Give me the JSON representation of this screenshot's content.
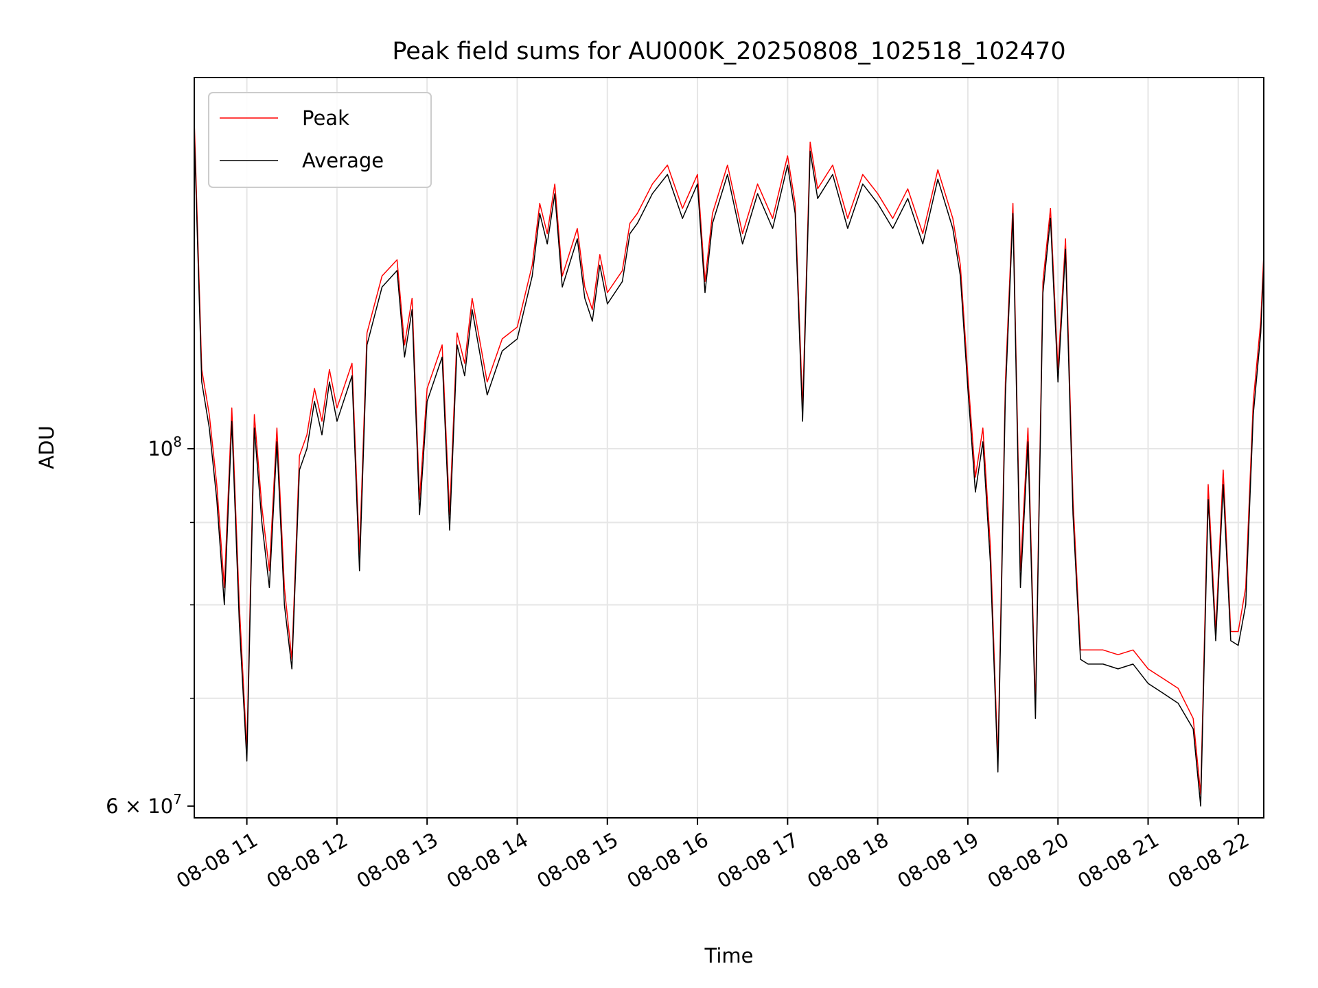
{
  "chart_data": {
    "type": "line",
    "title": "Peak field sums for AU000K_20250808_102518_102470",
    "xlabel": "Time",
    "ylabel": "ADU",
    "y_scale": "log",
    "ylim": [
      59000000,
      170000000
    ],
    "xlim": [
      "2025-08-08 10:25",
      "2025-08-08 22:17"
    ],
    "grid": true,
    "legend": "top-left",
    "x_ticks": [
      "08-08 11",
      "08-08 12",
      "08-08 13",
      "08-08 14",
      "08-08 15",
      "08-08 16",
      "08-08 17",
      "08-08 18",
      "08-08 19",
      "08-08 20",
      "08-08 21",
      "08-08 22"
    ],
    "x_tick_values": [
      "2025-08-08 11:00",
      "2025-08-08 12:00",
      "2025-08-08 13:00",
      "2025-08-08 14:00",
      "2025-08-08 15:00",
      "2025-08-08 16:00",
      "2025-08-08 17:00",
      "2025-08-08 18:00",
      "2025-08-08 19:00",
      "2025-08-08 20:00",
      "2025-08-08 21:00",
      "2025-08-08 22:00"
    ],
    "y_ticks": [
      {
        "value": 100000000,
        "base": "10",
        "exp": "8",
        "prefix": ""
      },
      {
        "value": 60000000,
        "base": "10",
        "exp": "7",
        "prefix": "6 × "
      }
    ],
    "x": [
      "2025-08-08 10:25",
      "2025-08-08 10:30",
      "2025-08-08 10:35",
      "2025-08-08 10:40",
      "2025-08-08 10:45",
      "2025-08-08 10:50",
      "2025-08-08 10:55",
      "2025-08-08 11:00",
      "2025-08-08 11:05",
      "2025-08-08 11:10",
      "2025-08-08 11:15",
      "2025-08-08 11:20",
      "2025-08-08 11:25",
      "2025-08-08 11:30",
      "2025-08-08 11:35",
      "2025-08-08 11:40",
      "2025-08-08 11:45",
      "2025-08-08 11:50",
      "2025-08-08 11:55",
      "2025-08-08 12:00",
      "2025-08-08 12:10",
      "2025-08-08 12:15",
      "2025-08-08 12:20",
      "2025-08-08 12:30",
      "2025-08-08 12:40",
      "2025-08-08 12:45",
      "2025-08-08 12:50",
      "2025-08-08 12:55",
      "2025-08-08 13:00",
      "2025-08-08 13:10",
      "2025-08-08 13:15",
      "2025-08-08 13:20",
      "2025-08-08 13:25",
      "2025-08-08 13:30",
      "2025-08-08 13:40",
      "2025-08-08 13:50",
      "2025-08-08 14:00",
      "2025-08-08 14:10",
      "2025-08-08 14:15",
      "2025-08-08 14:20",
      "2025-08-08 14:25",
      "2025-08-08 14:30",
      "2025-08-08 14:40",
      "2025-08-08 14:45",
      "2025-08-08 14:50",
      "2025-08-08 14:55",
      "2025-08-08 15:00",
      "2025-08-08 15:10",
      "2025-08-08 15:15",
      "2025-08-08 15:20",
      "2025-08-08 15:30",
      "2025-08-08 15:40",
      "2025-08-08 15:50",
      "2025-08-08 16:00",
      "2025-08-08 16:05",
      "2025-08-08 16:10",
      "2025-08-08 16:20",
      "2025-08-08 16:30",
      "2025-08-08 16:40",
      "2025-08-08 16:50",
      "2025-08-08 17:00",
      "2025-08-08 17:05",
      "2025-08-08 17:10",
      "2025-08-08 17:15",
      "2025-08-08 17:20",
      "2025-08-08 17:30",
      "2025-08-08 17:40",
      "2025-08-08 17:50",
      "2025-08-08 18:00",
      "2025-08-08 18:10",
      "2025-08-08 18:20",
      "2025-08-08 18:30",
      "2025-08-08 18:40",
      "2025-08-08 18:50",
      "2025-08-08 18:55",
      "2025-08-08 19:00",
      "2025-08-08 19:05",
      "2025-08-08 19:10",
      "2025-08-08 19:15",
      "2025-08-08 19:20",
      "2025-08-08 19:25",
      "2025-08-08 19:30",
      "2025-08-08 19:35",
      "2025-08-08 19:40",
      "2025-08-08 19:45",
      "2025-08-08 19:50",
      "2025-08-08 19:55",
      "2025-08-08 20:00",
      "2025-08-08 20:05",
      "2025-08-08 20:10",
      "2025-08-08 20:15",
      "2025-08-08 20:20",
      "2025-08-08 20:30",
      "2025-08-08 20:40",
      "2025-08-08 20:50",
      "2025-08-08 21:00",
      "2025-08-08 21:10",
      "2025-08-08 21:20",
      "2025-08-08 21:30",
      "2025-08-08 21:35",
      "2025-08-08 21:40",
      "2025-08-08 21:45",
      "2025-08-08 21:50",
      "2025-08-08 21:55",
      "2025-08-08 22:00",
      "2025-08-08 22:05",
      "2025-08-08 22:10",
      "2025-08-08 22:15",
      "2025-08-08 22:17"
    ],
    "series": [
      {
        "name": "Peak",
        "color": "#ff0000",
        "values": [
          160000000,
          112000000,
          105000000,
          95000000,
          82000000,
          106000000,
          80000000,
          65000000,
          105000000,
          92000000,
          84000000,
          103000000,
          82000000,
          74000000,
          99000000,
          102000000,
          109000000,
          104000000,
          112000000,
          106000000,
          113000000,
          86000000,
          118000000,
          128000000,
          131000000,
          116000000,
          124000000,
          93000000,
          109000000,
          116000000,
          91000000,
          118000000,
          113000000,
          124000000,
          110000000,
          117000000,
          119000000,
          130000000,
          142000000,
          136000000,
          146000000,
          128000000,
          137000000,
          126000000,
          122000000,
          132000000,
          125000000,
          129000000,
          138000000,
          140000000,
          146000000,
          150000000,
          141000000,
          148000000,
          127000000,
          140000000,
          150000000,
          136000000,
          146000000,
          139000000,
          152000000,
          142000000,
          106000000,
          155000000,
          145000000,
          150000000,
          139000000,
          148000000,
          144000000,
          139000000,
          145000000,
          136000000,
          149000000,
          139000000,
          130000000,
          111000000,
          96000000,
          103000000,
          87000000,
          64000000,
          110000000,
          142000000,
          84000000,
          103000000,
          69000000,
          127000000,
          141000000,
          112000000,
          135000000,
          93000000,
          75000000,
          75000000,
          75000000,
          74500000,
          75000000,
          73000000,
          72000000,
          71000000,
          68000000,
          61000000,
          95000000,
          77000000,
          97000000,
          77000000,
          77000000,
          82000000,
          107000000,
          120000000,
          132000000
        ]
      },
      {
        "name": "Average",
        "color": "#000000",
        "values": [
          157000000,
          110000000,
          103000000,
          93000000,
          80000000,
          104000000,
          78000000,
          64000000,
          103000000,
          90000000,
          82000000,
          101000000,
          80000000,
          73000000,
          97000000,
          100000000,
          107000000,
          102000000,
          110000000,
          104000000,
          111000000,
          84000000,
          116000000,
          126000000,
          129000000,
          114000000,
          122000000,
          91000000,
          107000000,
          114000000,
          89000000,
          116000000,
          111000000,
          122000000,
          108000000,
          115000000,
          117000000,
          128000000,
          140000000,
          134000000,
          144000000,
          126000000,
          135000000,
          124000000,
          120000000,
          130000000,
          123000000,
          127000000,
          136000000,
          138000000,
          144000000,
          148000000,
          139000000,
          146000000,
          125000000,
          138000000,
          148000000,
          134000000,
          144000000,
          137000000,
          150000000,
          140000000,
          104000000,
          153000000,
          143000000,
          148000000,
          137000000,
          146000000,
          142000000,
          137000000,
          143000000,
          134000000,
          147000000,
          137000000,
          128000000,
          109000000,
          94000000,
          101000000,
          85000000,
          63000000,
          108000000,
          140000000,
          82000000,
          101000000,
          68000000,
          125000000,
          139000000,
          110000000,
          133000000,
          91000000,
          74000000,
          73500000,
          73500000,
          73000000,
          73500000,
          71500000,
          70500000,
          69500000,
          67000000,
          60000000,
          93000000,
          76000000,
          95000000,
          76000000,
          75500000,
          80000000,
          105000000,
          118000000,
          130000000
        ]
      }
    ]
  }
}
